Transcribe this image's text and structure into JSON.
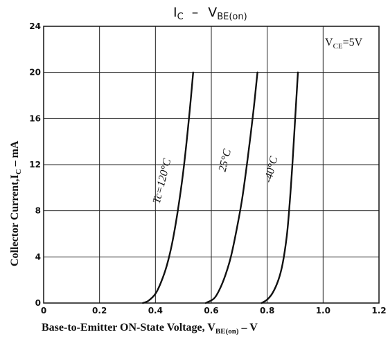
{
  "chart_data": {
    "type": "line",
    "title": {
      "main": "I",
      "main_sub": "C",
      "sep": "–",
      "rhs": "V",
      "rhs_sub": "BE(on)"
    },
    "xlabel": {
      "text": "Base-to-Emitter ON-State Voltage, V",
      "sub": "BE(on)",
      "suffix": " – V"
    },
    "ylabel": {
      "text": "Collector Current,I",
      "sub": "C",
      "suffix": " – mA"
    },
    "condition": {
      "text": "V",
      "sub": "CE",
      "suffix": "=5V"
    },
    "xlim": [
      0,
      1.2
    ],
    "ylim": [
      0,
      24
    ],
    "xticks": [
      0,
      0.2,
      0.4,
      0.6,
      0.8,
      1.0,
      1.2
    ],
    "xtick_labels": [
      "0",
      "0.2",
      "0.4",
      "0.6",
      "0.8",
      "1.0",
      "1.2"
    ],
    "yticks": [
      0,
      4,
      8,
      12,
      16,
      20,
      24
    ],
    "ytick_labels": [
      "0",
      "4",
      "8",
      "12",
      "16",
      "20",
      "24"
    ],
    "grid": true,
    "series": [
      {
        "name": "Tc=120°C",
        "x": [
          0.355,
          0.375,
          0.4,
          0.42,
          0.44,
          0.46,
          0.48,
          0.5,
          0.52,
          0.535
        ],
        "y": [
          0,
          0.2,
          0.8,
          1.8,
          3.2,
          5.2,
          8.0,
          11.5,
          16.0,
          20.0
        ]
      },
      {
        "name": "25°C",
        "x": [
          0.58,
          0.61,
          0.63,
          0.65,
          0.67,
          0.69,
          0.71,
          0.73,
          0.75,
          0.765
        ],
        "y": [
          0,
          0.4,
          1.2,
          2.4,
          4.0,
          6.3,
          9.0,
          12.5,
          16.5,
          20.0
        ]
      },
      {
        "name": "-40°C",
        "x": [
          0.78,
          0.8,
          0.82,
          0.84,
          0.855,
          0.87,
          0.88,
          0.89,
          0.9,
          0.91
        ],
        "y": [
          0,
          0.3,
          0.9,
          2.0,
          3.4,
          5.8,
          8.5,
          12.0,
          16.0,
          20.0
        ]
      }
    ],
    "curve_labels": [
      {
        "text": "Tc=120°C",
        "x": 0.435,
        "y": 10.5
      },
      {
        "text": "25°C",
        "x": 0.66,
        "y": 12.3
      },
      {
        "text": "-40°C",
        "x": 0.825,
        "y": 11.5
      }
    ]
  }
}
